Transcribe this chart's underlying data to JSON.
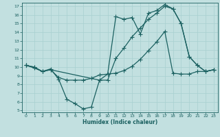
{
  "xlabel": "Humidex (Indice chaleur)",
  "bg_color": "#c2e0e0",
  "line_color": "#1a6060",
  "grid_color": "#a8d0d0",
  "xlim": [
    -0.5,
    23.5
  ],
  "ylim": [
    4.8,
    17.4
  ],
  "xticks": [
    0,
    1,
    2,
    3,
    4,
    5,
    6,
    7,
    8,
    9,
    10,
    11,
    12,
    13,
    14,
    15,
    16,
    17,
    18,
    19,
    20,
    21,
    22,
    23
  ],
  "yticks": [
    5,
    6,
    7,
    8,
    9,
    10,
    11,
    12,
    13,
    14,
    15,
    16,
    17
  ],
  "line1_x": [
    0,
    1,
    2,
    3,
    4,
    5,
    6,
    7,
    8,
    9,
    10,
    11,
    12,
    13,
    14,
    15,
    16,
    17,
    18,
    19,
    20,
    21,
    22,
    23
  ],
  "line1_y": [
    10.2,
    10.0,
    9.5,
    9.8,
    8.6,
    6.3,
    5.8,
    5.2,
    5.4,
    8.5,
    8.5,
    11.0,
    12.2,
    13.5,
    14.5,
    15.5,
    16.2,
    17.0,
    16.7,
    15.0,
    11.2,
    10.2,
    9.5,
    9.7
  ],
  "line2_x": [
    0,
    1,
    2,
    3,
    4,
    5,
    6,
    7,
    8,
    9,
    10,
    11,
    12,
    13,
    14,
    15,
    16,
    17,
    18,
    19,
    20,
    21,
    22,
    23
  ],
  "line2_y": [
    10.2,
    9.9,
    9.5,
    9.7,
    8.8,
    8.5,
    8.5,
    8.5,
    8.7,
    9.1,
    9.2,
    9.3,
    9.6,
    10.1,
    10.9,
    11.9,
    12.9,
    14.1,
    9.3,
    9.2,
    9.2,
    9.5,
    9.5,
    9.7
  ],
  "line3_x": [
    0,
    1,
    2,
    3,
    9,
    10,
    11,
    12,
    13,
    14,
    15,
    16,
    17,
    18,
    19,
    20,
    21,
    22,
    23
  ],
  "line3_y": [
    10.2,
    10.0,
    9.5,
    9.7,
    8.5,
    9.2,
    15.8,
    15.5,
    15.7,
    13.8,
    16.2,
    16.5,
    17.2,
    16.7,
    15.0,
    11.2,
    10.2,
    9.5,
    9.7
  ]
}
